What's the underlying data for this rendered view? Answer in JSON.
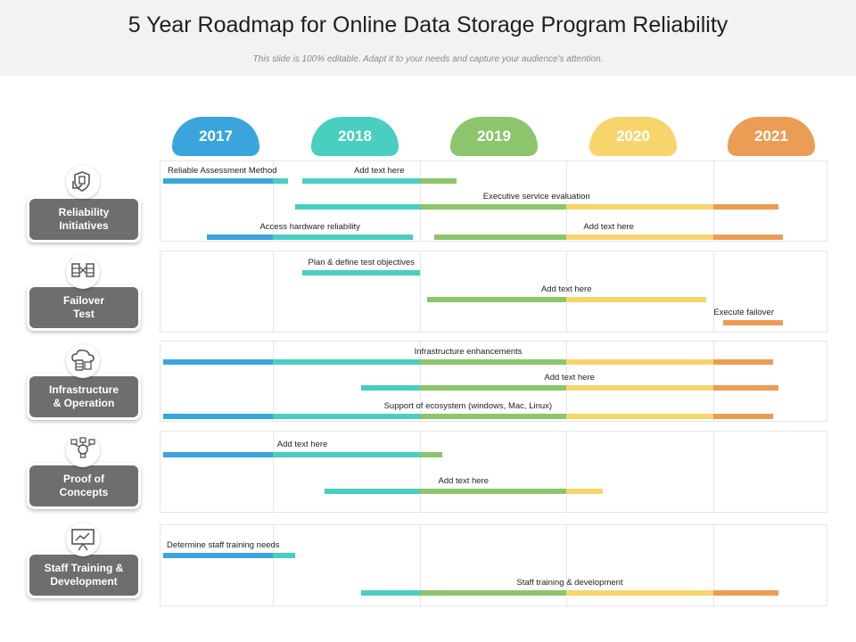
{
  "header": {
    "title": "5 Year Roadmap for Online Data Storage Program Reliability",
    "subtitle": "This slide is 100% editable. Adapt it to your needs and capture your audience's attention."
  },
  "years": [
    {
      "label": "2017",
      "color": "#3aa5dc"
    },
    {
      "label": "2018",
      "color": "#49cfc0"
    },
    {
      "label": "2019",
      "color": "#8cc56b"
    },
    {
      "label": "2020",
      "color": "#f7d56c"
    },
    {
      "label": "2021",
      "color": "#eb9c55"
    }
  ],
  "categories": [
    {
      "label": "Reliability\nInitiatives",
      "icon": "shield-hand-icon"
    },
    {
      "label": "Failover\nTest",
      "icon": "server-network-icon"
    },
    {
      "label": "Infrastructure\n& Operation",
      "icon": "cloud-storage-icon"
    },
    {
      "label": "Proof of\nConcepts",
      "icon": "lightbulb-network-icon"
    },
    {
      "label": "Staff Training &\nDevelopment",
      "icon": "presentation-board-icon"
    }
  ],
  "tasks": [
    {
      "label": "Reliable  Assessment Method",
      "category": 0,
      "start": 2017.0,
      "end": 2018.1
    },
    {
      "label": "Add text here",
      "category": 0,
      "start": 2018.2,
      "end": 2019.25
    },
    {
      "label": "Executive service evaluation",
      "category": 0,
      "start": 2018.15,
      "end": 2021.65
    },
    {
      "label": "Access hardware reliability",
      "category": 0,
      "start": 2017.4,
      "end": 2018.95
    },
    {
      "label": "Add text here",
      "category": 0,
      "start": 2019.1,
      "end": 2021.7
    },
    {
      "label": "Plan & define test objectives",
      "category": 1,
      "start": 2018.2,
      "end": 2019.0
    },
    {
      "label": "Add text here",
      "category": 1,
      "start": 2019.05,
      "end": 2020.95
    },
    {
      "label": "Execute failover",
      "category": 1,
      "start": 2021.1,
      "end": 2021.7
    },
    {
      "label": "Infrastructure enhancements",
      "category": 2,
      "start": 2017.0,
      "end": 2021.6
    },
    {
      "label": "Add text here",
      "category": 2,
      "start": 2018.6,
      "end": 2021.65
    },
    {
      "label": "Support of ecosystem (windows, Mac, Linux)",
      "category": 2,
      "start": 2017.0,
      "end": 2021.6
    },
    {
      "label": "Add text here",
      "category": 3,
      "start": 2017.0,
      "end": 2019.15
    },
    {
      "label": "Add text here",
      "category": 3,
      "start": 2018.35,
      "end": 2020.25
    },
    {
      "label": "Determine staff training needs",
      "category": 4,
      "start": 2017.0,
      "end": 2018.15
    },
    {
      "label": "Staff training & development",
      "category": 4,
      "start": 2018.6,
      "end": 2021.65
    }
  ]
}
